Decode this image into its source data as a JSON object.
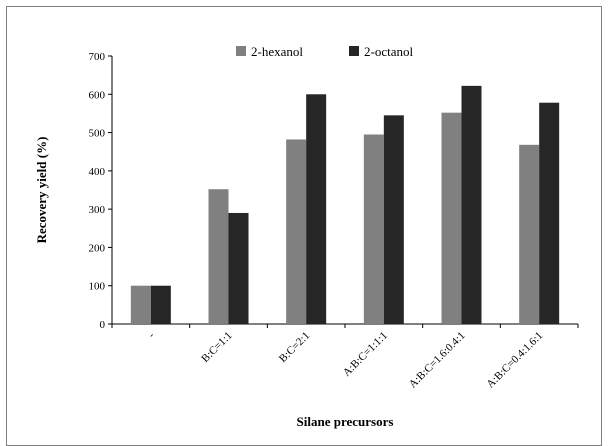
{
  "chart_data": {
    "type": "bar",
    "title": "",
    "xlabel": "Silane precursors",
    "ylabel": "Recovery yield (%)",
    "ylim": [
      0,
      700
    ],
    "yticks": [
      0,
      100,
      200,
      300,
      400,
      500,
      600,
      700
    ],
    "grid": false,
    "legend_position": "top",
    "categories": [
      "-",
      "B:C=1:1",
      "B:C=2:1",
      "A:B:C=1:1:1",
      "A:B:C=1.6:0.4:1",
      "A:B:C=0.4:1.6:1"
    ],
    "series": [
      {
        "name": "2-hexanol",
        "color": "#808080",
        "values": [
          100,
          352,
          482,
          495,
          552,
          468
        ]
      },
      {
        "name": "2-octanol",
        "color": "#262626",
        "values": [
          100,
          290,
          600,
          545,
          622,
          578
        ]
      }
    ]
  }
}
